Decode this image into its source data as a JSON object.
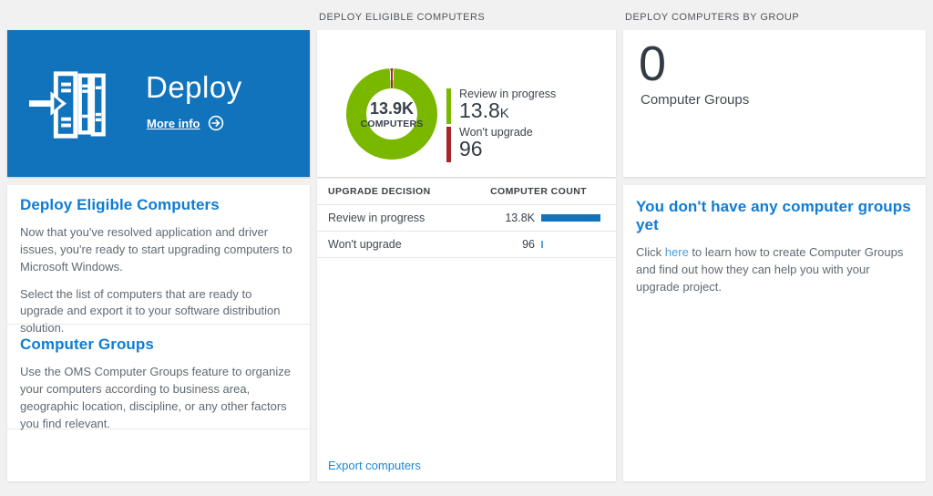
{
  "colors": {
    "background": "#f1f1f1",
    "tile_blue": "#1173bc",
    "heading_blue": "#0f7cd4",
    "link_blue": "#1c87d5",
    "inline_link_blue": "#4a9fd8",
    "green": "#7ab800",
    "red": "#a6262c",
    "bar_blue": "#1173bc",
    "tick_blue": "#5ca3dd",
    "body_text": "#5f6a73",
    "dark_text": "#333b44"
  },
  "deploy": {
    "tile": {
      "title": "Deploy",
      "more_info_label": "More info"
    },
    "sections": [
      {
        "heading": "Deploy Eligible Computers",
        "paragraphs": [
          "Now that you've resolved application and driver issues, you're ready to start upgrading computers to Microsoft Windows.",
          "Select the list of computers that are ready to upgrade and export it to your software distribution solution."
        ]
      },
      {
        "heading": "Computer Groups",
        "paragraphs": [
          "Use the OMS Computer Groups feature to organize your computers according to business area, geographic location, discipline, or any other factors you find relevant."
        ]
      }
    ]
  },
  "eligible": {
    "header": "DEPLOY ELIGIBLE COMPUTERS",
    "donut": {
      "center_value": "13.9K",
      "center_label": "COMPUTERS",
      "legend": [
        {
          "label": "Review in progress",
          "value": "13.8",
          "suffix": "K",
          "color": "#7ab800"
        },
        {
          "label": "Won't upgrade",
          "value": "96",
          "suffix": "",
          "color": "#a6262c"
        }
      ]
    },
    "table": {
      "columns": [
        "UPGRADE DECISION",
        "COMPUTER COUNT"
      ],
      "rows": [
        {
          "decision": "Review in progress",
          "count": "13.8K",
          "bar_pct": 100,
          "bar_color": "#1173bc"
        },
        {
          "decision": "Won't upgrade",
          "count": "96",
          "bar_pct": 3,
          "bar_color": "#5ca3dd"
        }
      ]
    },
    "export_link": "Export computers"
  },
  "groups": {
    "header": "DEPLOY COMPUTERS BY GROUP",
    "tile": {
      "value": "0",
      "label": "Computer Groups"
    },
    "empty_state": {
      "heading": "You don't have any computer groups yet",
      "text_before_link": "Click ",
      "link_text": "here",
      "text_after_link": " to learn how to create Computer Groups and find out how they can help you with your upgrade project."
    }
  },
  "chart_data": [
    {
      "type": "pie",
      "donut": true,
      "title": "Deploy Eligible Computers",
      "labels": [
        "Review in progress",
        "Won't upgrade"
      ],
      "values": [
        13800,
        96
      ],
      "colors": [
        "#7ab800",
        "#a6262c"
      ],
      "center_text": [
        "13.9K",
        "COMPUTERS"
      ],
      "legend_position": "right"
    },
    {
      "type": "table",
      "columns": [
        "UPGRADE DECISION",
        "COMPUTER COUNT"
      ],
      "rows": [
        [
          "Review in progress",
          "13.8K"
        ],
        [
          "Won't upgrade",
          "96"
        ]
      ]
    }
  ]
}
